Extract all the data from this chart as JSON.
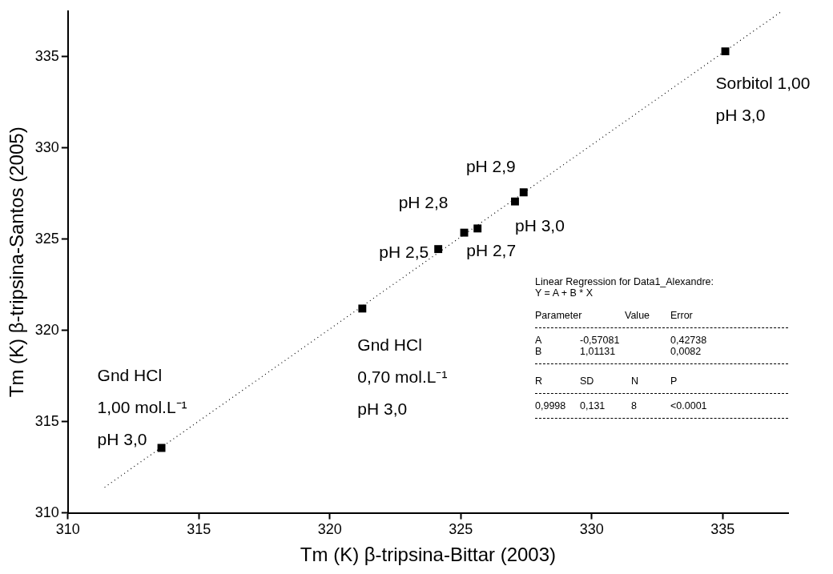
{
  "chart_data": {
    "type": "scatter",
    "xlabel": "Tm (K) β-tripsina-Bittar (2003)",
    "ylabel": "Tm (K) β-tripsina-Santos (2005)",
    "xlim": [
      310,
      337.5
    ],
    "ylim": [
      310,
      337.5
    ],
    "xticks": [
      310,
      315,
      320,
      325,
      330,
      335
    ],
    "yticks": [
      310,
      315,
      320,
      325,
      330,
      335
    ],
    "grid": false,
    "legend": false,
    "marker": "square",
    "series": [
      {
        "type": "scatter",
        "color": "#000000",
        "x": [
          313.57,
          321.24,
          324.14,
          325.13,
          325.64,
          327.07,
          327.4,
          335.1
        ],
        "values": [
          313.56,
          321.2,
          324.46,
          325.36,
          325.59,
          327.07,
          327.57,
          335.3
        ]
      },
      {
        "type": "line",
        "color": "#000000",
        "line_style": "dotted",
        "marker": "none",
        "x": [
          311.4,
          337.26
        ],
        "values": [
          311.4,
          337.5
        ]
      }
    ],
    "annotations": [
      {
        "text": "Gnd HCl\n1,00 mol.L⁻¹\npH 3,0",
        "x": 313.57,
        "y": 313.56
      },
      {
        "text": "Gnd HCl\n0,70 mol.L⁻¹\npH 3,0",
        "x": 321.24,
        "y": 321.2
      },
      {
        "text": "pH 2,5",
        "x": 324.14,
        "y": 324.46
      },
      {
        "text": "pH 2,8",
        "x": 325.13,
        "y": 325.36
      },
      {
        "text": "pH 2,7",
        "x": 325.64,
        "y": 325.59
      },
      {
        "text": "pH 3,0",
        "x": 327.07,
        "y": 327.07
      },
      {
        "text": "pH 2,9",
        "x": 327.4,
        "y": 327.57
      },
      {
        "text": "Sorbitol 1,00\npH 3,0",
        "x": 335.1,
        "y": 335.3
      },
      "Linear Regression for Data1_Alexandre:",
      "Y = A + B * X",
      "Parameter\tValue\tError",
      "A\t-0,57081\t0,42738",
      "B\t1,01131\t0,0082",
      "R\tSD\tN\tP",
      "0,9998\t0,131\t8\t<0.0001"
    ]
  }
}
